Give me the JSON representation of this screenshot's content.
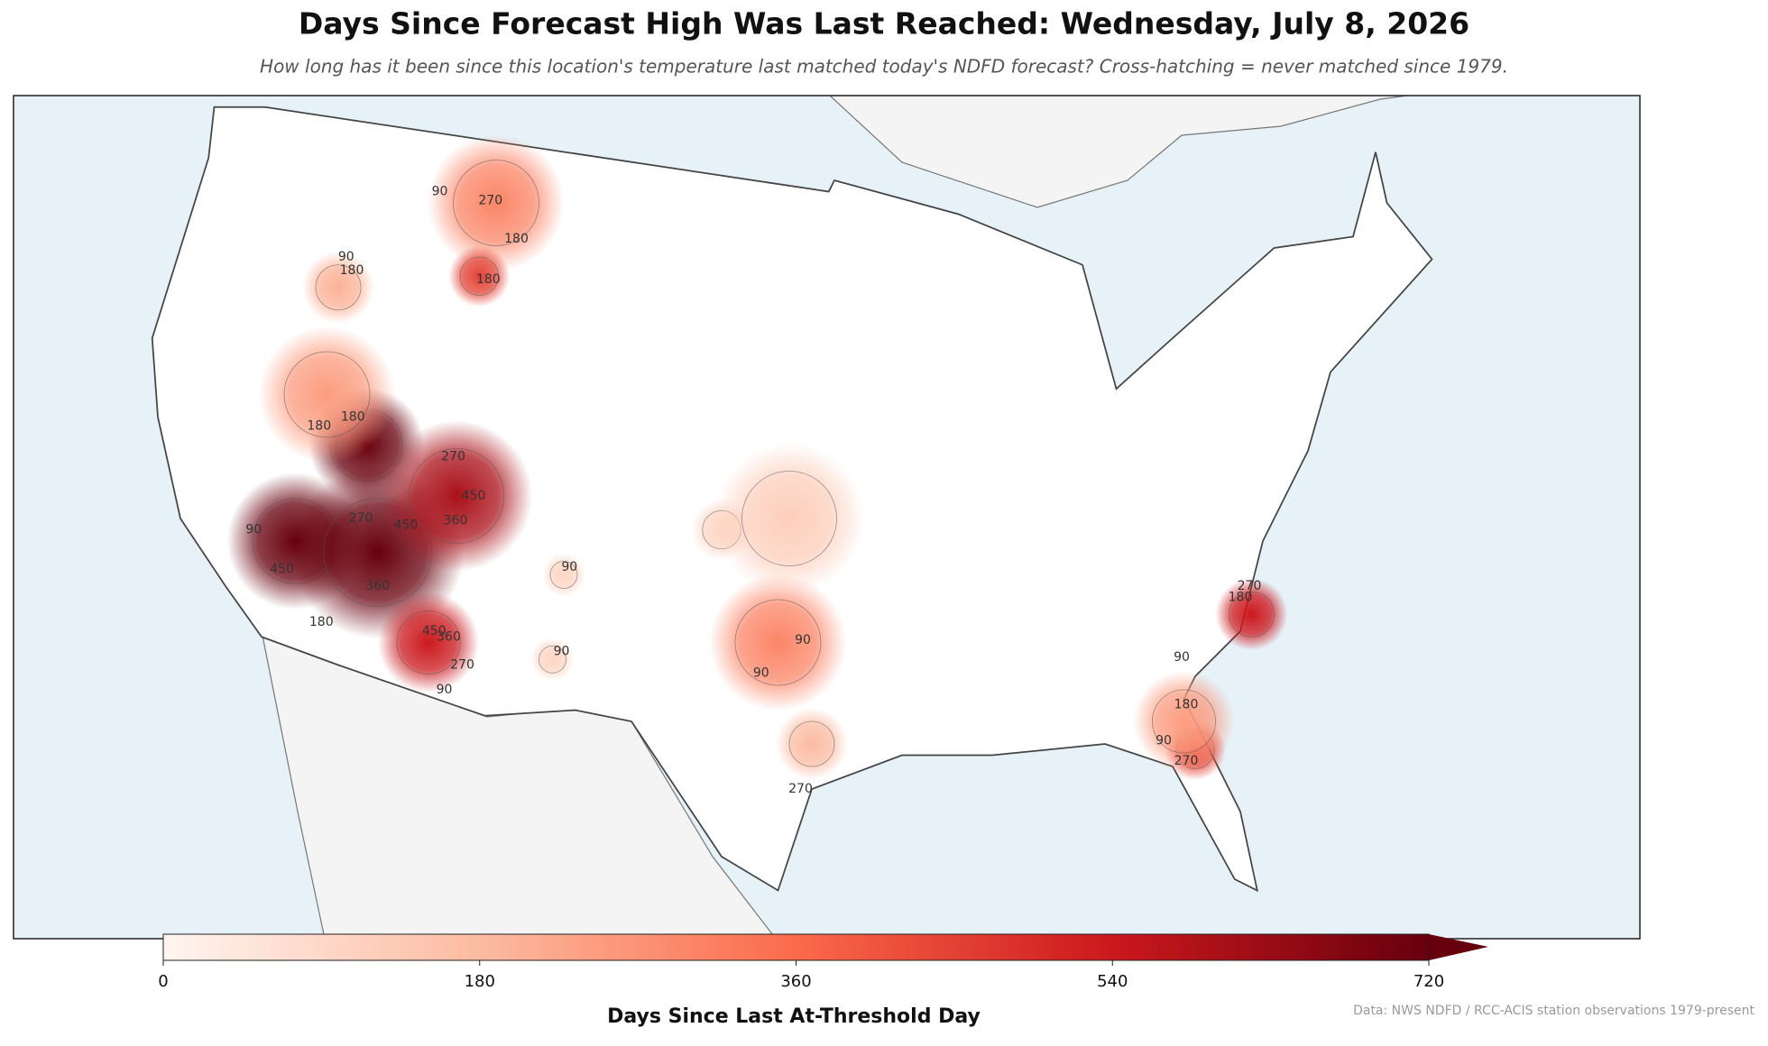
{
  "title": "Days Since Forecast High Was Last Reached: Wednesday, July 8, 2026",
  "subtitle": "How long has it been since this location's temperature last matched today's NDFD forecast? Cross-hatching = never matched since 1979.",
  "colorbar": {
    "label": "Days Since Last At-Threshold Day",
    "lim": [
      0,
      720
    ],
    "ticks": [
      0,
      180,
      360,
      540,
      720
    ],
    "colors": [
      "#fff5f0",
      "#fcbba1",
      "#fb6a4a",
      "#cb181d",
      "#67000d"
    ]
  },
  "hotspots": [
    720,
    720,
    720,
    600,
    540,
    300,
    450,
    200,
    250,
    300,
    540,
    450,
    250,
    180,
    100,
    100,
    100,
    120
  ],
  "contour_labels": [
    90,
    270,
    180,
    180,
    90,
    180,
    180,
    180,
    270,
    450,
    360,
    90,
    270,
    450,
    450,
    360,
    180,
    450,
    360,
    270,
    90,
    90,
    90,
    270,
    180,
    90,
    90,
    270,
    90,
    180,
    90,
    270
  ],
  "source": "Data: NWS NDFD / RCC-ACIS station observations 1979-present"
}
